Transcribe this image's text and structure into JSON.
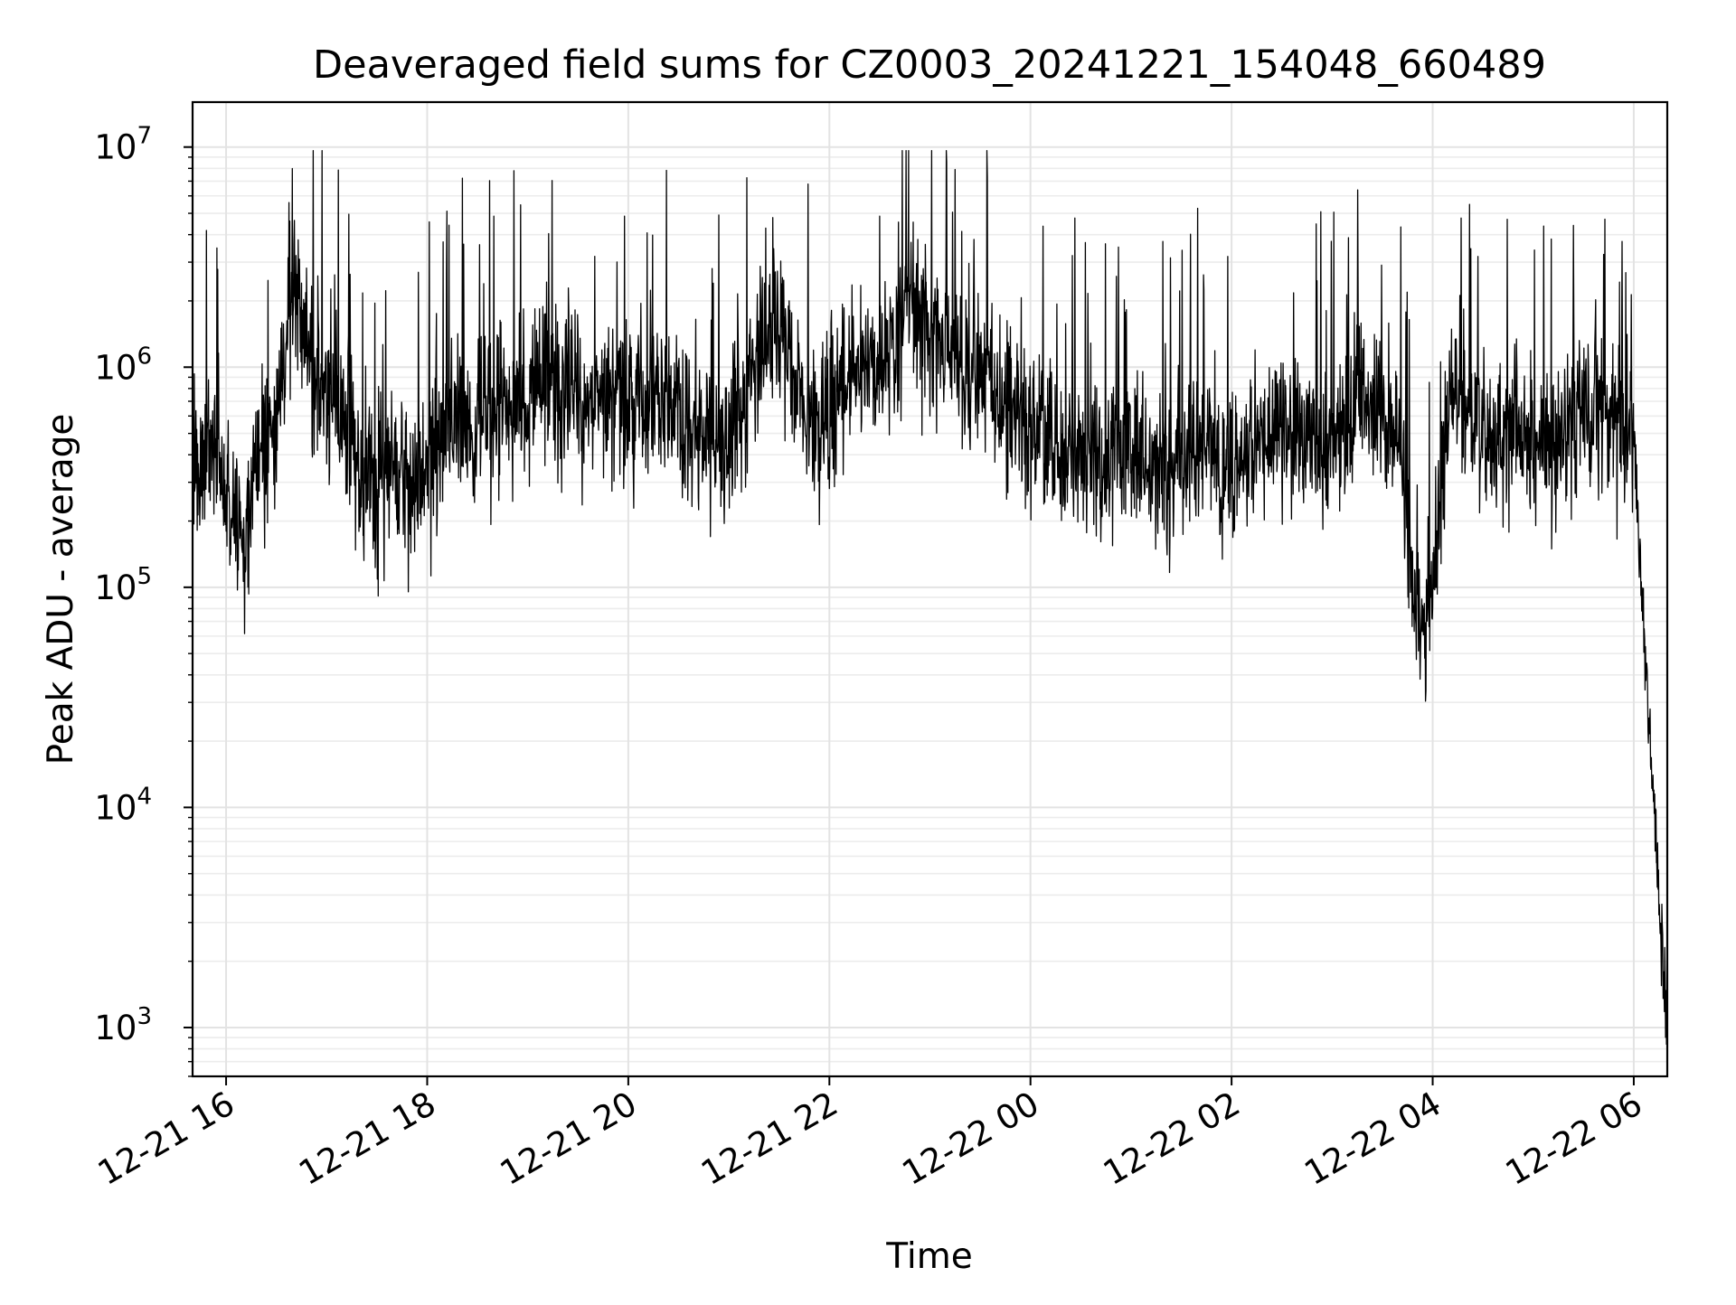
{
  "chart_data": {
    "type": "line",
    "title": "Deaveraged field sums for CZ0003_20241221_154048_660489",
    "xlabel": "Time",
    "ylabel": "Peak ADU - average",
    "yscale": "log",
    "ylim": [
      600,
      16000000
    ],
    "xlim": [
      "2024-12-21 15:40",
      "2024-12-22 06:20"
    ],
    "grid": true,
    "legend": "none",
    "line_color": "#000000",
    "x_ticks": [
      {
        "value": "2024-12-21 16:00",
        "label": "12-21 16"
      },
      {
        "value": "2024-12-21 18:00",
        "label": "12-21 18"
      },
      {
        "value": "2024-12-21 20:00",
        "label": "12-21 20"
      },
      {
        "value": "2024-12-21 22:00",
        "label": "12-21 22"
      },
      {
        "value": "2024-12-22 00:00",
        "label": "12-22 00"
      },
      {
        "value": "2024-12-22 02:00",
        "label": "12-22 02"
      },
      {
        "value": "2024-12-22 04:00",
        "label": "12-22 04"
      },
      {
        "value": "2024-12-22 06:00",
        "label": "12-22 06"
      }
    ],
    "y_ticks": [
      {
        "value": 1000,
        "base": "10",
        "exp": "3"
      },
      {
        "value": 10000,
        "base": "10",
        "exp": "4"
      },
      {
        "value": 100000,
        "base": "10",
        "exp": "5"
      },
      {
        "value": 1000000,
        "base": "10",
        "exp": "6"
      },
      {
        "value": 10000000,
        "base": "10",
        "exp": "7"
      }
    ],
    "series": [
      {
        "x": [
          "2024-12-21 15:40",
          "2024-12-21 15:50",
          "2024-12-21 16:00",
          "2024-12-21 16:10",
          "2024-12-21 16:20",
          "2024-12-21 16:30",
          "2024-12-21 16:40",
          "2024-12-21 16:50",
          "2024-12-21 17:00",
          "2024-12-21 17:10",
          "2024-12-21 17:20",
          "2024-12-21 17:30",
          "2024-12-21 17:40",
          "2024-12-21 17:50",
          "2024-12-21 18:00",
          "2024-12-21 18:10",
          "2024-12-21 18:20",
          "2024-12-21 18:30",
          "2024-12-21 18:40",
          "2024-12-21 18:50",
          "2024-12-21 19:00",
          "2024-12-21 19:10",
          "2024-12-21 19:20",
          "2024-12-21 19:30",
          "2024-12-21 19:40",
          "2024-12-21 19:50",
          "2024-12-21 20:00",
          "2024-12-21 20:10",
          "2024-12-21 20:20",
          "2024-12-21 20:30",
          "2024-12-21 20:40",
          "2024-12-21 20:50",
          "2024-12-21 21:00",
          "2024-12-21 21:10",
          "2024-12-21 21:20",
          "2024-12-21 21:30",
          "2024-12-21 21:40",
          "2024-12-21 21:50",
          "2024-12-21 22:00",
          "2024-12-21 22:10",
          "2024-12-21 22:20",
          "2024-12-21 22:30",
          "2024-12-21 22:40",
          "2024-12-21 22:50",
          "2024-12-21 23:00",
          "2024-12-21 23:10",
          "2024-12-21 23:20",
          "2024-12-21 23:30",
          "2024-12-21 23:40",
          "2024-12-21 23:50",
          "2024-12-22 00:00",
          "2024-12-22 00:10",
          "2024-12-22 00:20",
          "2024-12-22 00:30",
          "2024-12-22 00:40",
          "2024-12-22 00:50",
          "2024-12-22 01:00",
          "2024-12-22 01:10",
          "2024-12-22 01:20",
          "2024-12-22 01:30",
          "2024-12-22 01:40",
          "2024-12-22 01:50",
          "2024-12-22 02:00",
          "2024-12-22 02:10",
          "2024-12-22 02:20",
          "2024-12-22 02:30",
          "2024-12-22 02:40",
          "2024-12-22 02:50",
          "2024-12-22 03:00",
          "2024-12-22 03:10",
          "2024-12-22 03:20",
          "2024-12-22 03:30",
          "2024-12-22 03:40",
          "2024-12-22 03:50",
          "2024-12-22 04:00",
          "2024-12-22 04:10",
          "2024-12-22 04:20",
          "2024-12-22 04:30",
          "2024-12-22 04:40",
          "2024-12-22 04:50",
          "2024-12-22 05:00",
          "2024-12-22 05:10",
          "2024-12-22 05:20",
          "2024-12-22 05:30",
          "2024-12-22 05:40",
          "2024-12-22 05:50",
          "2024-12-22 06:00",
          "2024-12-22 06:05",
          "2024-12-22 06:10",
          "2024-12-22 06:15",
          "2024-12-22 06:20"
        ],
        "y": [
          400000,
          500000,
          300000,
          150000,
          400000,
          500000,
          3000000,
          1000000,
          800000,
          600000,
          300000,
          250000,
          400000,
          300000,
          350000,
          500000,
          600000,
          500000,
          700000,
          600000,
          800000,
          900000,
          700000,
          800000,
          600000,
          700000,
          600000,
          700000,
          700000,
          600000,
          500000,
          500000,
          500000,
          700000,
          1200000,
          1500000,
          900000,
          500000,
          600000,
          900000,
          1000000,
          1000000,
          1500000,
          2000000,
          1500000,
          1200000,
          900000,
          1000000,
          800000,
          600000,
          500000,
          500000,
          400000,
          450000,
          350000,
          400000,
          400000,
          350000,
          300000,
          400000,
          450000,
          400000,
          350000,
          400000,
          450000,
          500000,
          500000,
          450000,
          400000,
          600000,
          700000,
          600000,
          500000,
          80000,
          100000,
          800000,
          600000,
          500000,
          400000,
          500000,
          450000,
          400000,
          500000,
          600000,
          600000,
          600000,
          500000,
          80000,
          20000,
          4000,
          1000
        ]
      }
    ]
  }
}
